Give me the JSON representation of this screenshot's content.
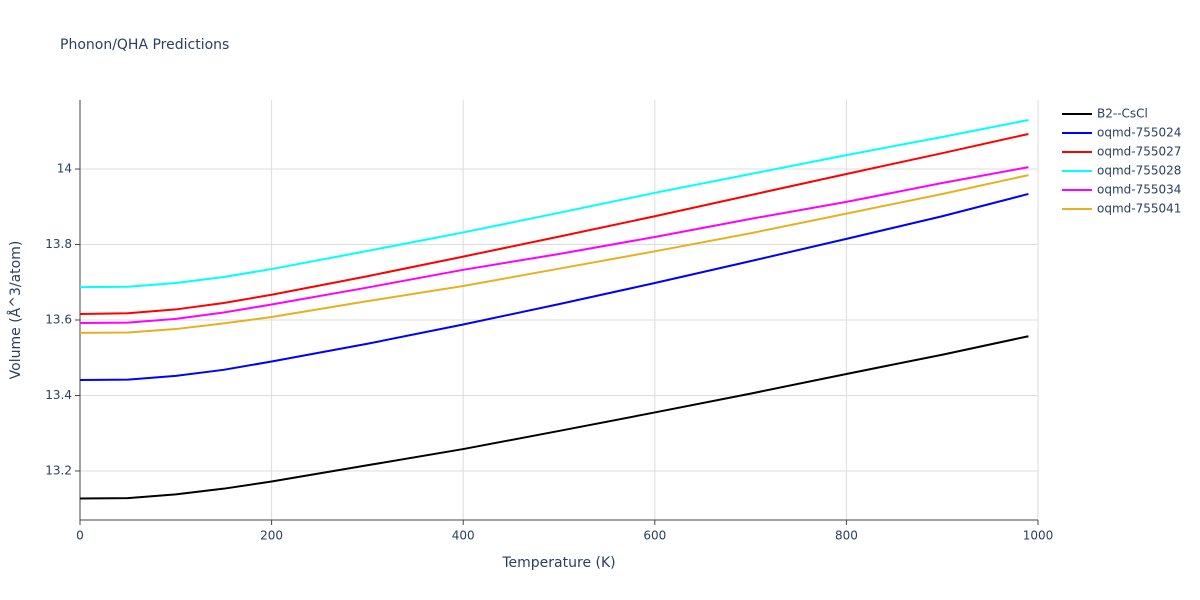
{
  "chart_data": {
    "type": "line",
    "title": "Phonon/QHA Predictions",
    "x_label": "Temperature (K)",
    "y_label": "Volume (Å^3/atom)",
    "x": [
      0,
      50,
      100,
      150,
      200,
      300,
      400,
      500,
      600,
      700,
      800,
      900,
      990
    ],
    "series": [
      {
        "name": "B2--CsCl",
        "color": "#000000",
        "values": [
          13.127,
          13.128,
          13.138,
          13.153,
          13.172,
          13.215,
          13.258,
          13.306,
          13.355,
          13.405,
          13.457,
          13.508,
          13.557
        ]
      },
      {
        "name": "oqmd-755024",
        "color": "#0000ff",
        "values": [
          13.441,
          13.442,
          13.452,
          13.468,
          13.49,
          13.537,
          13.588,
          13.642,
          13.698,
          13.756,
          13.815,
          13.875,
          13.934
        ]
      },
      {
        "name": "oqmd-755027",
        "color": "#ff0000",
        "values": [
          13.616,
          13.618,
          13.628,
          13.645,
          13.667,
          13.716,
          13.768,
          13.821,
          13.875,
          13.931,
          13.987,
          14.042,
          14.093
        ]
      },
      {
        "name": "oqmd-755028",
        "color": "#00ffff",
        "values": [
          13.687,
          13.688,
          13.698,
          13.714,
          13.735,
          13.783,
          13.832,
          13.884,
          13.937,
          13.987,
          14.037,
          14.085,
          14.13
        ]
      },
      {
        "name": "oqmd-755034",
        "color": "#ff00ff",
        "values": [
          13.592,
          13.593,
          13.603,
          13.62,
          13.641,
          13.686,
          13.733,
          13.775,
          13.82,
          13.868,
          13.913,
          13.963,
          14.005
        ]
      },
      {
        "name": "oqmd-755041",
        "color": "#e6b020",
        "values": [
          13.566,
          13.567,
          13.576,
          13.591,
          13.608,
          13.65,
          13.69,
          13.736,
          13.782,
          13.83,
          13.882,
          13.934,
          13.984
        ]
      }
    ],
    "xlim": [
      0,
      1000
    ],
    "xticks": [
      0,
      200,
      400,
      600,
      800,
      1000
    ],
    "ylim": [
      13.07,
      14.183
    ],
    "yticks": [
      13.2,
      13.4,
      13.6,
      13.8,
      14
    ],
    "grid": true,
    "legend": "right"
  }
}
